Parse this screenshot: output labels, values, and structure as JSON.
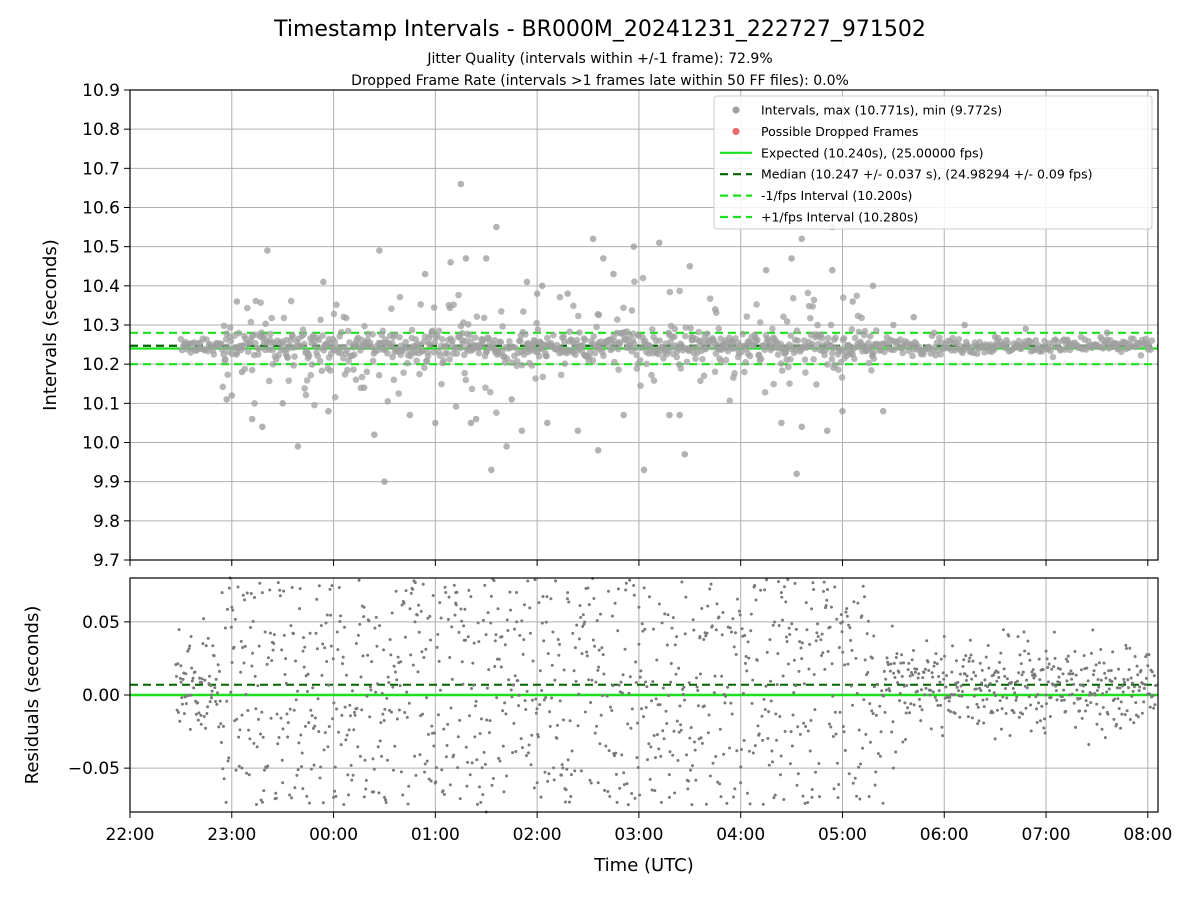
{
  "chart_data": [
    {
      "type": "scatter",
      "title": "Timestamp Intervals - BR000M_20241231_222727_971502",
      "subtitle_lines": [
        "Jitter Quality (intervals within +/-1 frame): 72.9%",
        "Dropped Frame Rate (intervals >1 frames late within 50 FF files): 0.0%"
      ],
      "ylabel": "Intervals (seconds)",
      "xlim_hours": [
        22.0,
        32.1
      ],
      "ylim": [
        9.7,
        10.9
      ],
      "yticks": [
        "9.7",
        "9.8",
        "9.9",
        "10.0",
        "10.1",
        "10.2",
        "10.3",
        "10.4",
        "10.5",
        "10.6",
        "10.7",
        "10.8",
        "10.9"
      ],
      "grid": true,
      "legend_position": "top-right",
      "legend": [
        {
          "label": "Intervals, max (10.771s), min (9.772s)",
          "kind": "marker",
          "color": "#a0a0a0"
        },
        {
          "label": "Possible Dropped Frames",
          "kind": "marker",
          "color": "#f06c6c"
        },
        {
          "label": "Expected (10.240s), (25.00000 fps)",
          "kind": "solid",
          "color": "#1be01b"
        },
        {
          "label": "Median (10.247 +/- 0.037 s), (24.98294 +/- 0.09 fps)",
          "kind": "dashed",
          "color": "#006400"
        },
        {
          "label": "-1/fps Interval (10.200s)",
          "kind": "dashed",
          "color": "#1be01b"
        },
        {
          "label": "+1/fps Interval (10.280s)",
          "kind": "dashed",
          "color": "#1be01b"
        }
      ],
      "reference_lines": {
        "expected": 10.24,
        "median": 10.247,
        "minus_1fps": 10.2,
        "plus_1fps": 10.28
      },
      "series": [
        {
          "name": "Intervals, max (10.771s), min (9.772s)",
          "color": "#a0a0a0",
          "points": [
            [
              22.95,
              10.11
            ],
            [
              23.0,
              10.12
            ],
            [
              23.05,
              10.36
            ],
            [
              23.1,
              10.18
            ],
            [
              23.2,
              10.06
            ],
            [
              23.3,
              10.04
            ],
            [
              23.35,
              10.49
            ],
            [
              23.5,
              10.1
            ],
            [
              23.65,
              9.99
            ],
            [
              23.9,
              10.41
            ],
            [
              23.95,
              10.08
            ],
            [
              24.3,
              10.14
            ],
            [
              24.4,
              10.02
            ],
            [
              24.45,
              10.49
            ],
            [
              24.5,
              9.9
            ],
            [
              24.75,
              10.07
            ],
            [
              24.9,
              10.43
            ],
            [
              25.0,
              10.05
            ],
            [
              25.15,
              10.46
            ],
            [
              25.25,
              10.66
            ],
            [
              25.3,
              10.47
            ],
            [
              25.35,
              10.05
            ],
            [
              25.4,
              10.06
            ],
            [
              25.5,
              10.47
            ],
            [
              25.55,
              9.93
            ],
            [
              25.6,
              10.55
            ],
            [
              25.7,
              9.99
            ],
            [
              25.75,
              10.11
            ],
            [
              25.85,
              10.03
            ],
            [
              25.9,
              10.41
            ],
            [
              26.0,
              10.38
            ],
            [
              26.05,
              10.4
            ],
            [
              26.1,
              10.05
            ],
            [
              26.3,
              10.38
            ],
            [
              26.4,
              10.03
            ],
            [
              26.55,
              10.52
            ],
            [
              26.6,
              9.98
            ],
            [
              26.65,
              10.47
            ],
            [
              26.75,
              10.43
            ],
            [
              26.85,
              10.07
            ],
            [
              26.95,
              10.5
            ],
            [
              27.05,
              9.93
            ],
            [
              27.2,
              10.51
            ],
            [
              27.3,
              10.07
            ],
            [
              27.4,
              10.07
            ],
            [
              27.45,
              9.97
            ],
            [
              27.5,
              10.45
            ],
            [
              27.75,
              10.34
            ],
            [
              28.25,
              10.44
            ],
            [
              28.4,
              10.05
            ],
            [
              28.5,
              10.47
            ],
            [
              28.55,
              9.92
            ],
            [
              28.6,
              10.52
            ],
            [
              28.6,
              10.04
            ],
            [
              28.85,
              10.03
            ],
            [
              28.9,
              10.55
            ],
            [
              28.9,
              10.44
            ],
            [
              29.0,
              10.08
            ],
            [
              29.1,
              10.36
            ],
            [
              29.3,
              10.4
            ],
            [
              29.4,
              10.08
            ],
            [
              29.5,
              10.3
            ],
            [
              29.7,
              10.32
            ],
            [
              29.9,
              10.28
            ],
            [
              30.2,
              10.3
            ],
            [
              30.5,
              10.27
            ],
            [
              30.8,
              10.29
            ],
            [
              31.2,
              10.26
            ],
            [
              31.6,
              10.28
            ],
            [
              32.0,
              10.25
            ]
          ]
        },
        {
          "name": "Possible Dropped Frames",
          "color": "#f06c6c",
          "points": []
        }
      ]
    },
    {
      "type": "scatter",
      "ylabel": "Residuals (seconds)",
      "xlabel": "Time (UTC)",
      "xlim_hours": [
        22.0,
        32.1
      ],
      "ylim": [
        -0.08,
        0.08
      ],
      "xticks": [
        "22:00",
        "23:00",
        "00:00",
        "01:00",
        "02:00",
        "03:00",
        "04:00",
        "05:00",
        "06:00",
        "07:00",
        "08:00"
      ],
      "yticks": [
        "−0.05",
        "0.00",
        "0.05"
      ],
      "grid": true,
      "reference_lines": {
        "zero": 0.0,
        "median_offset": 0.007
      },
      "series": [
        {
          "color": "#7a7a7a",
          "points": [
            [
              22.5,
              0.02
            ],
            [
              22.6,
              0.04
            ],
            [
              22.7,
              -0.02
            ],
            [
              22.8,
              0.0
            ],
            [
              23.0,
              0.06
            ],
            [
              23.1,
              -0.05
            ],
            [
              23.3,
              0.07
            ],
            [
              23.5,
              -0.06
            ],
            [
              23.7,
              0.03
            ],
            [
              24.0,
              -0.07
            ],
            [
              24.3,
              0.06
            ],
            [
              24.5,
              -0.07
            ],
            [
              24.8,
              0.05
            ],
            [
              25.0,
              -0.06
            ],
            [
              25.2,
              0.07
            ],
            [
              25.5,
              -0.08
            ],
            [
              25.8,
              0.05
            ],
            [
              26.0,
              -0.06
            ],
            [
              26.3,
              0.07
            ],
            [
              26.6,
              -0.06
            ],
            [
              27.0,
              0.06
            ],
            [
              27.3,
              -0.07
            ],
            [
              27.6,
              0.04
            ],
            [
              28.0,
              -0.06
            ],
            [
              28.4,
              0.07
            ],
            [
              28.7,
              -0.07
            ],
            [
              29.0,
              0.05
            ],
            [
              29.5,
              -0.05
            ],
            [
              30.0,
              0.04
            ],
            [
              30.5,
              -0.03
            ],
            [
              31.0,
              0.03
            ],
            [
              31.5,
              -0.02
            ],
            [
              32.0,
              0.02
            ]
          ]
        }
      ]
    }
  ]
}
